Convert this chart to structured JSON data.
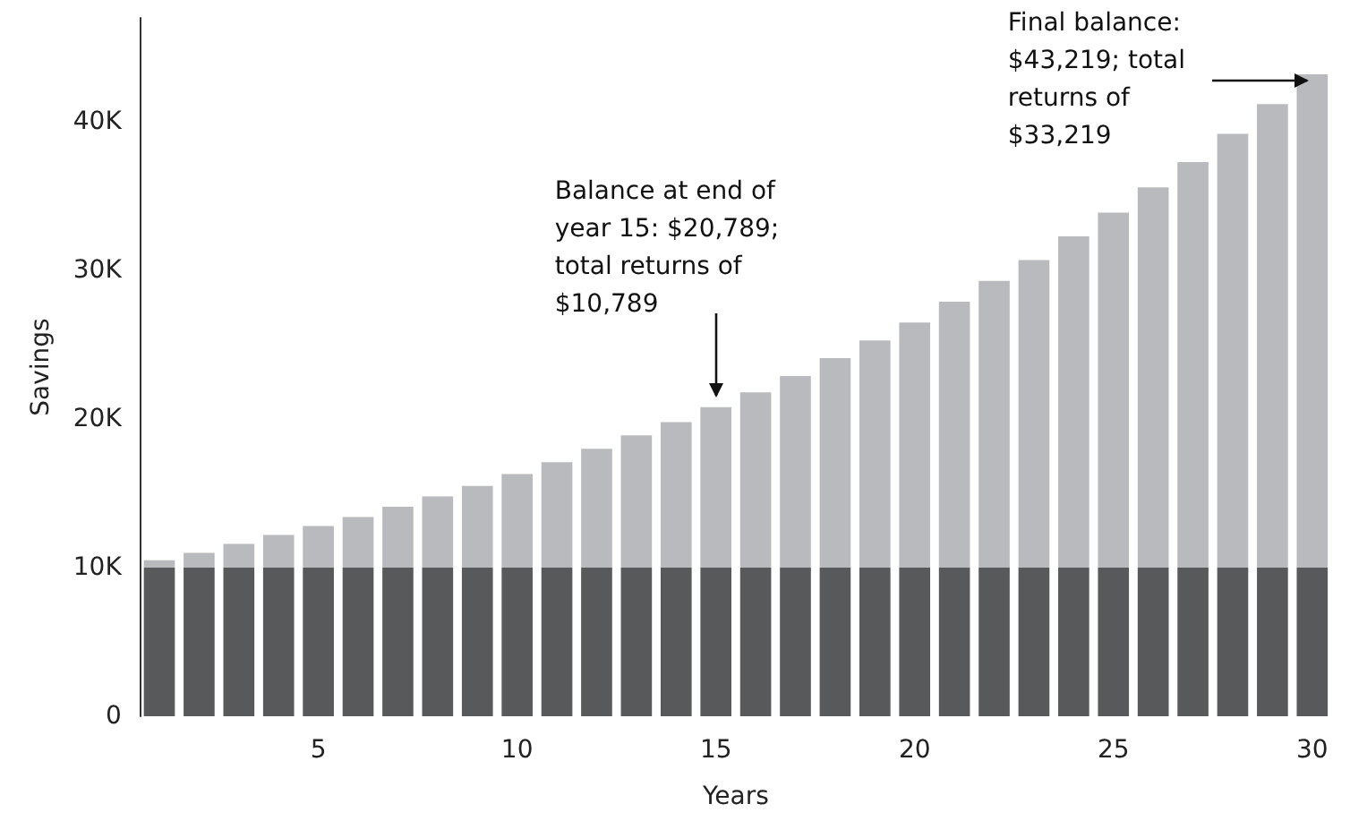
{
  "chart_data": {
    "type": "bar",
    "stacked": true,
    "xlabel": "Years",
    "ylabel": "Savings",
    "categories": [
      null,
      null,
      null,
      null,
      "5",
      null,
      null,
      null,
      null,
      "10",
      null,
      null,
      null,
      null,
      "15",
      null,
      null,
      null,
      null,
      "20",
      null,
      null,
      null,
      null,
      "25",
      null,
      null,
      null,
      null,
      "30"
    ],
    "series": [
      {
        "color": "#58595b",
        "values": [
          10000,
          10000,
          10000,
          10000,
          10000,
          10000,
          10000,
          10000,
          10000,
          10000,
          10000,
          10000,
          10000,
          10000,
          10000,
          10000,
          10000,
          10000,
          10000,
          10000,
          10000,
          10000,
          10000,
          10000,
          10000,
          10000,
          10000,
          10000,
          10000,
          10000
        ]
      },
      {
        "color": "#b9babd",
        "values": [
          500,
          1000,
          1600,
          2200,
          2800,
          3400,
          4100,
          4800,
          5500,
          6300,
          7100,
          8000,
          8900,
          9800,
          10800,
          11800,
          12900,
          14100,
          15300,
          16500,
          17900,
          19300,
          20700,
          22300,
          23900,
          25600,
          27300,
          29200,
          31200,
          33200
        ]
      }
    ],
    "ylim": [
      0,
      47000
    ],
    "yticks": [
      {
        "value": 0,
        "label": "0"
      },
      {
        "value": 10000,
        "label": "10K"
      },
      {
        "value": 20000,
        "label": "20K"
      },
      {
        "value": 30000,
        "label": "30K"
      },
      {
        "value": 40000,
        "label": "40K"
      }
    ],
    "grid": false,
    "annotations": [
      {
        "text": "Balance at end of year 15: $20,789; total returns of $10,789",
        "x": "15",
        "y": 20789
      },
      {
        "text": "Final balance: $43,219; total returns of $33,219",
        "x": "30",
        "y": 43219
      }
    ]
  }
}
